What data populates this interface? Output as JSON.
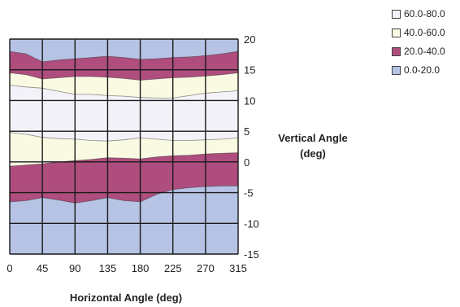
{
  "chart_data": {
    "type": "area",
    "xlabel": "Horizontal Angle (deg)",
    "ylabel_line1": "Vertical Angle",
    "ylabel_line2": "(deg)",
    "xlim": [
      0,
      315
    ],
    "ylim": [
      -15,
      20
    ],
    "x_ticks": [
      "0",
      "45",
      "90",
      "135",
      "180",
      "225",
      "270",
      "315"
    ],
    "y_ticks": [
      "20",
      "15",
      "10",
      "5",
      "0",
      "-5",
      "-10",
      "-15"
    ],
    "x": [
      0,
      22.5,
      45,
      67.5,
      90,
      112.5,
      135,
      157.5,
      180,
      202.5,
      225,
      247.5,
      270,
      292.5,
      315
    ],
    "legend": [
      {
        "label": "60.0-80.0",
        "color": "#f2f2f8"
      },
      {
        "label": "40.0-60.0",
        "color": "#fafae2"
      },
      {
        "label": "20.0-40.0",
        "color": "#ae4d7e"
      },
      {
        "label": "0.0-20.0",
        "color": "#b6c3e4"
      }
    ],
    "bands": [
      {
        "range": "0.0-20.0",
        "color": "#b6c3e4",
        "lower": [
          -15,
          -15,
          -15,
          -15,
          -15,
          -15,
          -15,
          -15,
          -15,
          -15,
          -15,
          -15,
          -15,
          -15,
          -15
        ],
        "upper": [
          20,
          20,
          20,
          20,
          20,
          20,
          20,
          20,
          20,
          20,
          20,
          20,
          20,
          20,
          20
        ]
      },
      {
        "range": "20.0-40.0",
        "color": "#ae4d7e",
        "lower": [
          -6.5,
          -6.3,
          -5.8,
          -6.2,
          -6.7,
          -6.3,
          -5.8,
          -6.3,
          -6.5,
          -5.3,
          -4.5,
          -4.2,
          -4.0,
          -3.9,
          -3.9
        ],
        "upper": [
          18.0,
          17.6,
          16.3,
          16.6,
          16.8,
          17.0,
          17.2,
          17.0,
          16.7,
          16.8,
          17.0,
          17.1,
          17.3,
          17.6,
          18.0
        ]
      },
      {
        "range": "40.0-60.0",
        "color": "#fafae2",
        "lower": [
          -0.7,
          -0.5,
          -0.3,
          0.0,
          0.2,
          0.4,
          0.7,
          0.6,
          0.5,
          0.8,
          1.0,
          1.1,
          1.3,
          1.4,
          1.5
        ],
        "upper": [
          14.5,
          14.2,
          13.5,
          13.7,
          13.9,
          13.9,
          13.8,
          13.6,
          13.3,
          13.5,
          13.7,
          13.8,
          14.0,
          14.2,
          14.5
        ]
      },
      {
        "range": "60.0-80.0",
        "color": "#f2f2f8",
        "lower": [
          4.8,
          4.5,
          4.0,
          3.8,
          3.7,
          3.5,
          3.4,
          3.6,
          3.9,
          3.7,
          3.5,
          3.5,
          3.6,
          3.7,
          3.9
        ],
        "upper": [
          12.5,
          12.2,
          12.0,
          11.5,
          11.0,
          11.0,
          10.8,
          10.7,
          10.5,
          10.4,
          10.4,
          10.8,
          11.2,
          11.4,
          11.6
        ]
      }
    ],
    "grid": true,
    "legend_position": "top-right"
  }
}
